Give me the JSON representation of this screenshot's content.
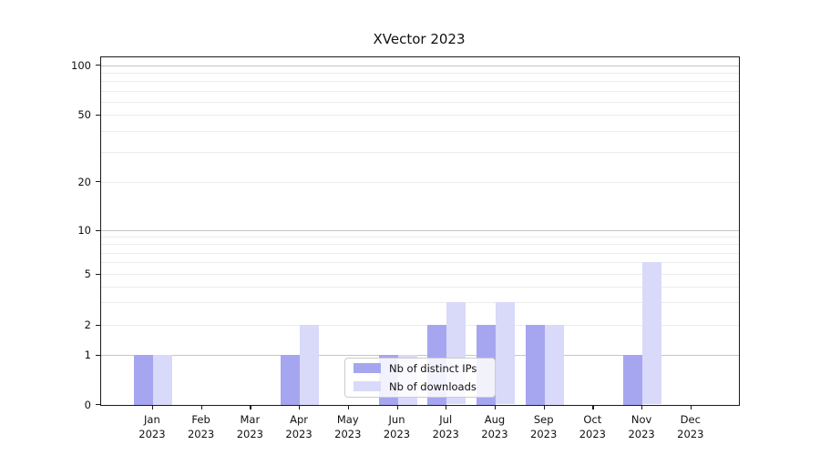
{
  "chart_data": {
    "type": "bar",
    "title": "XVector 2023",
    "categories": [
      "Jan",
      "Feb",
      "Mar",
      "Apr",
      "May",
      "Jun",
      "Jul",
      "Aug",
      "Sep",
      "Oct",
      "Nov",
      "Dec"
    ],
    "year_label": "2023",
    "series": [
      {
        "name": "Nb of distinct IPs",
        "color": "#a6a6f0",
        "values": [
          1,
          0,
          0,
          1,
          0,
          1,
          2,
          2,
          2,
          0,
          1,
          0
        ]
      },
      {
        "name": "Nb of downloads",
        "color": "#d9d9f9",
        "values": [
          1,
          0,
          0,
          2,
          0,
          1,
          3,
          3,
          2,
          0,
          6,
          0
        ]
      }
    ],
    "y_axis": {
      "scale": "symlog",
      "tick_labels": [
        100,
        50,
        20,
        10,
        5,
        2,
        1,
        0
      ],
      "major_grid_values": [
        1,
        10,
        100
      ],
      "minor_grid_values": [
        2,
        3,
        4,
        5,
        6,
        7,
        8,
        9,
        20,
        30,
        40,
        50,
        60,
        70,
        80,
        90
      ],
      "top_value": 110
    },
    "legend": {
      "entries": [
        "Nb of distinct IPs",
        "Nb of downloads"
      ],
      "position": "lower-center"
    },
    "colors": {
      "bar_distinct_ips": "#a6a6f0",
      "bar_downloads": "#d9d9f9",
      "grid_major": "#c6c6c6",
      "grid_minor": "#ececec",
      "axis": "#1a1a1a",
      "background": "#ffffff"
    }
  }
}
